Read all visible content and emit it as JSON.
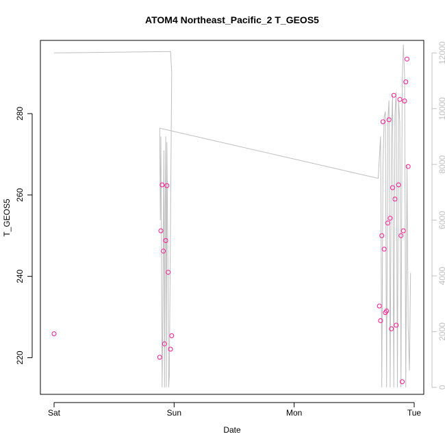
{
  "chart_data": {
    "type": "scatter",
    "title": "ATOM4 Northeast_Pacific_2 T_GEOS5",
    "xlabel": "Date",
    "ylabel": "T_GEOS5",
    "x_ticks": [
      "Sat",
      "Sun",
      "Mon",
      "Tue"
    ],
    "xlim_days": [
      0,
      3
    ],
    "ylim": [
      211,
      298
    ],
    "y_ticks": [
      220,
      240,
      260,
      280
    ],
    "y2lim": [
      -250,
      12450
    ],
    "y2_ticks": [
      0,
      2000,
      4000,
      6000,
      8000,
      10000,
      12000
    ],
    "grid": false,
    "colors": {
      "points": "#ff1493",
      "line": "#bebebe",
      "axis": "#000000",
      "right_axis": "#c0c0c0"
    },
    "series": [
      {
        "kind": "points",
        "axis": "left",
        "x_days": [
          0.0,
          0.88,
          0.89,
          0.9,
          0.91,
          0.92,
          0.93,
          0.94,
          0.95,
          0.97,
          0.98,
          2.71,
          2.72,
          2.73,
          2.74,
          2.75,
          2.76,
          2.77,
          2.78,
          2.79,
          2.8,
          2.81,
          2.82,
          2.83,
          2.84,
          2.85,
          2.87,
          2.88,
          2.89,
          2.9,
          2.91,
          2.92,
          2.93,
          2.94,
          2.95
        ],
        "values": [
          225.9,
          220.1,
          251.2,
          262.5,
          246.2,
          223.4,
          248.8,
          262.3,
          241.0,
          222.1,
          225.4,
          232.7,
          229.1,
          250.0,
          278.0,
          246.7,
          231.1,
          231.5,
          253.1,
          278.5,
          254.3,
          227.1,
          261.8,
          284.5,
          259.0,
          228.0,
          262.5,
          283.5,
          250.0,
          214.1,
          251.2,
          283.1,
          287.8,
          293.4,
          267.0
        ]
      },
      {
        "kind": "line",
        "axis": "right",
        "x_days": [
          0.0,
          0.97,
          0.98,
          0.97,
          0.96,
          0.955,
          0.95,
          0.94,
          0.935,
          0.93,
          0.925,
          0.92,
          0.915,
          0.91,
          0.905,
          0.9,
          0.895,
          0.89,
          0.885,
          0.88,
          2.7,
          2.72,
          2.73,
          2.74,
          2.75,
          2.76,
          2.77,
          2.78,
          2.79,
          2.8,
          2.81,
          2.82,
          2.83,
          2.84,
          2.85,
          2.86,
          2.87,
          2.88,
          2.89,
          2.9,
          2.91,
          2.92,
          2.93,
          2.94,
          2.95,
          2.96,
          2.97
        ],
        "values": [
          12000,
          12050,
          11300,
          6000,
          400,
          0,
          3500,
          8800,
          0,
          9000,
          6300,
          0,
          8500,
          5500,
          2000,
          0,
          4500,
          9000,
          6000,
          9300,
          7500,
          9000,
          0,
          8000,
          9700,
          9900,
          0,
          9500,
          10300,
          0,
          9000,
          10500,
          0,
          9800,
          10600,
          0,
          10300,
          9500,
          0,
          11000,
          12300,
          11200,
          0,
          8000,
          2200,
          600,
          4100
        ]
      }
    ]
  }
}
